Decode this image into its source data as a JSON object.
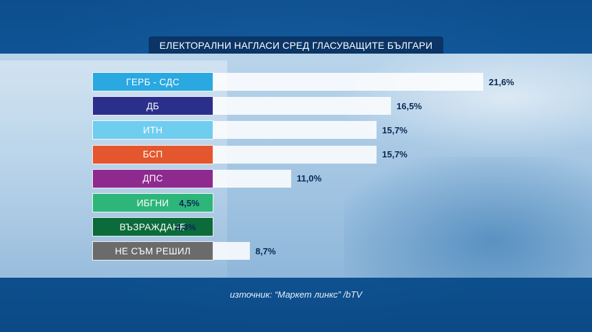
{
  "chart_data": {
    "type": "bar",
    "orientation": "horizontal",
    "title": "ЕЛЕКТОРАЛНИ НАГЛАСИ СРЕД ГЛАСУВАЩИТЕ БЪЛГАРИ",
    "categories": [
      "ГЕРБ - СДС",
      "ДБ",
      "ИТН",
      "БСП",
      "ДПС",
      "ИБГНИ",
      "ВЪЗРАЖДАНЕ",
      "НЕ СЪМ РЕШИЛ"
    ],
    "values": [
      21.6,
      16.5,
      15.7,
      15.7,
      11.0,
      4.5,
      4.3,
      8.7
    ],
    "value_labels": [
      "21,6%",
      "16,5%",
      "15,7%",
      "15,7%",
      "11,0%",
      "4,5%",
      "4,3%",
      "8,7%"
    ],
    "colors": [
      "#2aa8e0",
      "#2b2f8c",
      "#6fcdf0",
      "#e4572e",
      "#8e2a8e",
      "#2eb67a",
      "#0b6b3a",
      "#6b6b6b"
    ],
    "xlim": [
      0,
      21.6
    ],
    "grid": false,
    "legend": "none"
  },
  "source": "източник: “Маркет линкс” /bTV"
}
